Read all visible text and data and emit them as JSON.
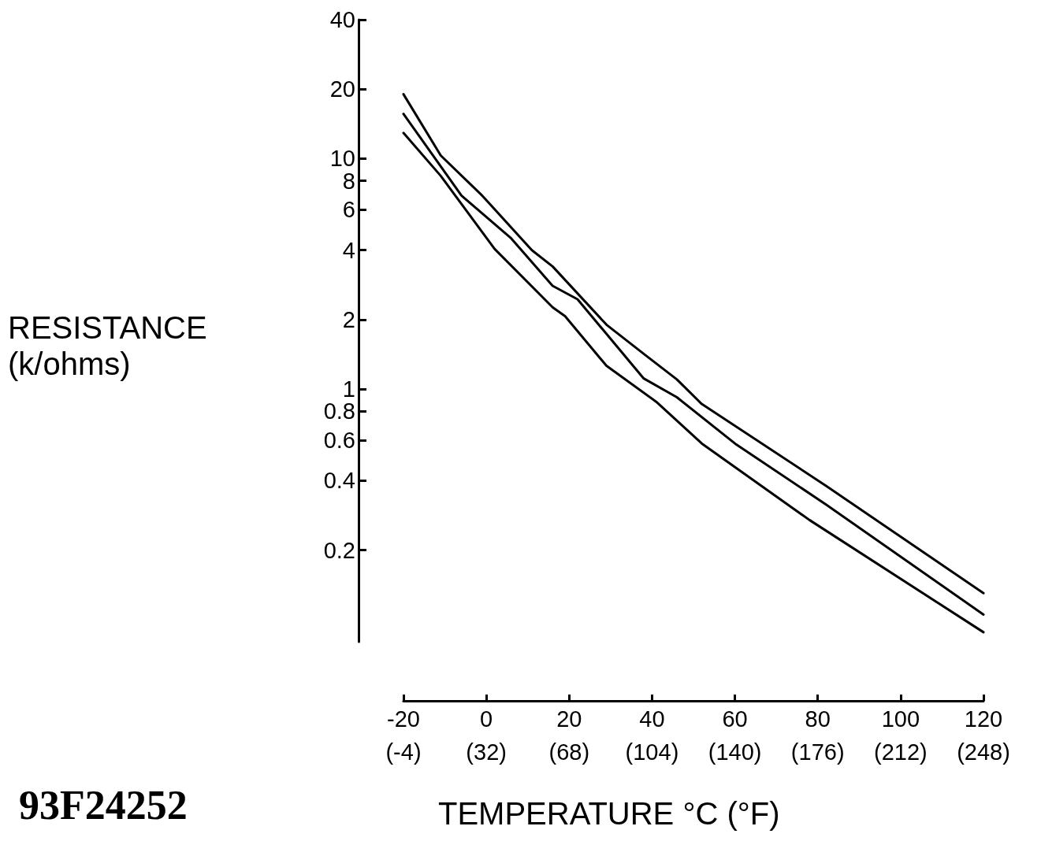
{
  "chart_data": {
    "type": "line",
    "xlabel": "TEMPERATURE °C (°F)",
    "ylabel": "RESISTANCE\n(k/ohms)",
    "annotations": [
      "93F24252"
    ],
    "log": "y",
    "grid": false,
    "marker": "none",
    "line_style": "solid",
    "xlim": [
      -20,
      120
    ],
    "xticks": [
      -20,
      0,
      20,
      40,
      60,
      80,
      100,
      120
    ],
    "x2lim": [
      -4,
      248
    ],
    "x2ticks": [
      {
        "value": -4,
        "label": "(-4)"
      },
      {
        "value": 32,
        "label": "(32)"
      },
      {
        "value": 68,
        "label": "(68)"
      },
      {
        "value": 104,
        "label": "(104)"
      },
      {
        "value": 140,
        "label": "(140)"
      },
      {
        "value": 176,
        "label": "(176)"
      },
      {
        "value": 212,
        "label": "(212)"
      },
      {
        "value": 248,
        "label": "(248)"
      }
    ],
    "ylim": [
      0.08,
      40
    ],
    "yticks": [
      0.2,
      0.4,
      0.6,
      0.8,
      1,
      2,
      4,
      6,
      8,
      10,
      20,
      40
    ],
    "series": [
      {
        "color": "#000000",
        "x": [
          -20,
          -11,
          -1,
          11,
          16,
          29,
          38,
          46,
          52,
          82,
          120
        ],
        "values": [
          19,
          10.3,
          6.9,
          4,
          3.4,
          1.9,
          1.42,
          1.1,
          0.86,
          0.38,
          0.13
        ]
      },
      {
        "color": "#000000",
        "x": [
          -20,
          -6,
          6,
          16,
          22,
          38,
          46,
          60,
          82,
          120
        ],
        "values": [
          15.6,
          6.9,
          4.5,
          2.8,
          2.45,
          1.11,
          0.92,
          0.58,
          0.315,
          0.105
        ]
      },
      {
        "color": "#000000",
        "x": [
          -20,
          -11,
          2,
          16,
          19,
          29,
          41,
          52,
          78,
          120
        ],
        "values": [
          12.9,
          8.4,
          4.05,
          2.26,
          2.07,
          1.26,
          0.88,
          0.58,
          0.27,
          0.088
        ]
      }
    ]
  }
}
